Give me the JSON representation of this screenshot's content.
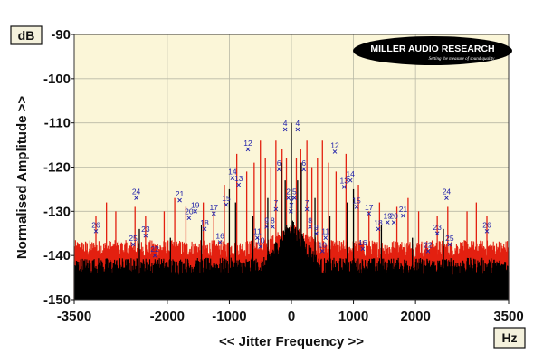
{
  "chart_data": {
    "type": "line",
    "title": "",
    "xlabel": "<< Jitter Frequency >>",
    "ylabel": "Normalised Amplitude >>",
    "x_unit": "Hz",
    "y_unit": "dB",
    "xlim": [
      -3500,
      3500
    ],
    "ylim": [
      -150,
      -90
    ],
    "x_ticks": [
      -3500,
      -2000,
      -1000,
      0,
      1000,
      2000,
      3500
    ],
    "x_tick_labels": [
      "-3500",
      "-2000",
      "-1000",
      "0",
      "1000",
      "2000",
      "3500"
    ],
    "y_ticks": [
      -90,
      -100,
      -110,
      -120,
      -130,
      -140,
      -150
    ],
    "y_tick_labels": [
      "-90",
      "-100",
      "-110",
      "-120",
      "-130",
      "-140",
      "-150"
    ],
    "grid": true,
    "background_color": "#fbf6d8",
    "series": [
      {
        "color": "#e32010",
        "noise_floor": -139,
        "spikes": [
          {
            "x": -3150,
            "y": -131
          },
          {
            "x": -2980,
            "y": -128
          },
          {
            "x": -2830,
            "y": -130
          },
          {
            "x": -2520,
            "y": -129
          },
          {
            "x": -2350,
            "y": -131
          },
          {
            "x": -2050,
            "y": -130
          },
          {
            "x": -1880,
            "y": -127
          },
          {
            "x": -1700,
            "y": -129
          },
          {
            "x": -1420,
            "y": -128
          },
          {
            "x": -1250,
            "y": -130
          },
          {
            "x": -1080,
            "y": -124
          },
          {
            "x": -880,
            "y": -117
          },
          {
            "x": -720,
            "y": -121
          },
          {
            "x": -600,
            "y": -119
          },
          {
            "x": -500,
            "y": -114
          },
          {
            "x": -420,
            "y": -118
          },
          {
            "x": -330,
            "y": -120
          },
          {
            "x": -250,
            "y": -114
          },
          {
            "x": -150,
            "y": -116
          },
          {
            "x": -80,
            "y": -118
          },
          {
            "x": 80,
            "y": -118
          },
          {
            "x": 150,
            "y": -116
          },
          {
            "x": 250,
            "y": -114
          },
          {
            "x": 330,
            "y": -120
          },
          {
            "x": 420,
            "y": -118
          },
          {
            "x": 500,
            "y": -114
          },
          {
            "x": 600,
            "y": -119
          },
          {
            "x": 720,
            "y": -121
          },
          {
            "x": 880,
            "y": -117
          },
          {
            "x": 1080,
            "y": -124
          },
          {
            "x": 1250,
            "y": -130
          },
          {
            "x": 1420,
            "y": -128
          },
          {
            "x": 1700,
            "y": -129
          },
          {
            "x": 1880,
            "y": -127
          },
          {
            "x": 2050,
            "y": -130
          },
          {
            "x": 2350,
            "y": -131
          },
          {
            "x": 2520,
            "y": -129
          },
          {
            "x": 2830,
            "y": -130
          },
          {
            "x": 2980,
            "y": -128
          },
          {
            "x": 3150,
            "y": -131
          }
        ]
      },
      {
        "color": "#000000",
        "noise_floor": -143,
        "spikes": [
          {
            "x": -2450,
            "y": -134
          },
          {
            "x": -1950,
            "y": -136
          },
          {
            "x": -1450,
            "y": -133
          },
          {
            "x": -1000,
            "y": -125
          },
          {
            "x": -900,
            "y": -128
          },
          {
            "x": -620,
            "y": -131
          },
          {
            "x": -380,
            "y": -127
          },
          {
            "x": -160,
            "y": -119
          },
          {
            "x": -100,
            "y": -123
          },
          {
            "x": 0,
            "y": -110
          },
          {
            "x": 100,
            "y": -123
          },
          {
            "x": 160,
            "y": -119
          },
          {
            "x": 380,
            "y": -127
          },
          {
            "x": 620,
            "y": -131
          },
          {
            "x": 900,
            "y": -128
          },
          {
            "x": 1000,
            "y": -125
          },
          {
            "x": 1450,
            "y": -133
          },
          {
            "x": 1950,
            "y": -136
          },
          {
            "x": 2450,
            "y": -134
          }
        ]
      }
    ],
    "annotations": [
      {
        "label": "4",
        "x": -100,
        "y": -111.5
      },
      {
        "label": "4",
        "x": 100,
        "y": -111.5
      },
      {
        "label": "6",
        "x": -200,
        "y": -120.5
      },
      {
        "label": "6",
        "x": 200,
        "y": -120.5
      },
      {
        "label": "2",
        "x": -50,
        "y": -127
      },
      {
        "label": "3",
        "x": 0,
        "y": -128.5
      },
      {
        "label": "5",
        "x": 50,
        "y": -127
      },
      {
        "label": "1",
        "x": -10,
        "y": -130
      },
      {
        "label": "7",
        "x": -250,
        "y": -129.5
      },
      {
        "label": "7",
        "x": 250,
        "y": -129.5
      },
      {
        "label": "8",
        "x": -300,
        "y": -133.5
      },
      {
        "label": "8",
        "x": 300,
        "y": -133.5
      },
      {
        "label": "9",
        "x": -400,
        "y": -133.5
      },
      {
        "label": "9",
        "x": 400,
        "y": -135
      },
      {
        "label": "10",
        "x": -500,
        "y": -138
      },
      {
        "label": "10",
        "x": 500,
        "y": -139
      },
      {
        "label": "11",
        "x": -550,
        "y": -136
      },
      {
        "label": "11",
        "x": 550,
        "y": -136
      },
      {
        "label": "12",
        "x": -700,
        "y": -116
      },
      {
        "label": "12",
        "x": 700,
        "y": -116.5
      },
      {
        "label": "13",
        "x": -850,
        "y": -124
      },
      {
        "label": "13",
        "x": 850,
        "y": -124.5
      },
      {
        "label": "14",
        "x": -950,
        "y": -122.5
      },
      {
        "label": "14",
        "x": 950,
        "y": -123
      },
      {
        "label": "15",
        "x": -1050,
        "y": -128.5
      },
      {
        "label": "15",
        "x": 1050,
        "y": -129
      },
      {
        "label": "16",
        "x": -1150,
        "y": -137
      },
      {
        "label": "16",
        "x": 1150,
        "y": -138.5
      },
      {
        "label": "17",
        "x": -1250,
        "y": -130.5
      },
      {
        "label": "17",
        "x": 1250,
        "y": -130.5
      },
      {
        "label": "18",
        "x": -1400,
        "y": -134
      },
      {
        "label": "18",
        "x": 1400,
        "y": -134
      },
      {
        "label": "19",
        "x": -1550,
        "y": -130
      },
      {
        "label": "19",
        "x": 1550,
        "y": -132.5
      },
      {
        "label": "20",
        "x": -1650,
        "y": -131.5
      },
      {
        "label": "20",
        "x": 1650,
        "y": -132.5
      },
      {
        "label": "21",
        "x": -1800,
        "y": -127.5
      },
      {
        "label": "21",
        "x": 1800,
        "y": -131
      },
      {
        "label": "22",
        "x": -2200,
        "y": -140
      },
      {
        "label": "22",
        "x": 2200,
        "y": -139
      },
      {
        "label": "23",
        "x": -2350,
        "y": -135.5
      },
      {
        "label": "23",
        "x": 2350,
        "y": -135
      },
      {
        "label": "24",
        "x": -2500,
        "y": -127
      },
      {
        "label": "24",
        "x": 2500,
        "y": -127
      },
      {
        "label": "25",
        "x": -2550,
        "y": -137.5
      },
      {
        "label": "25",
        "x": 2550,
        "y": -137.5
      },
      {
        "label": "26",
        "x": -3150,
        "y": -134.5
      },
      {
        "label": "26",
        "x": 3150,
        "y": -134.5
      }
    ]
  },
  "brand": {
    "name": "MILLER AUDIO RESEARCH",
    "tagline": "Setting the measure of sound quality"
  }
}
